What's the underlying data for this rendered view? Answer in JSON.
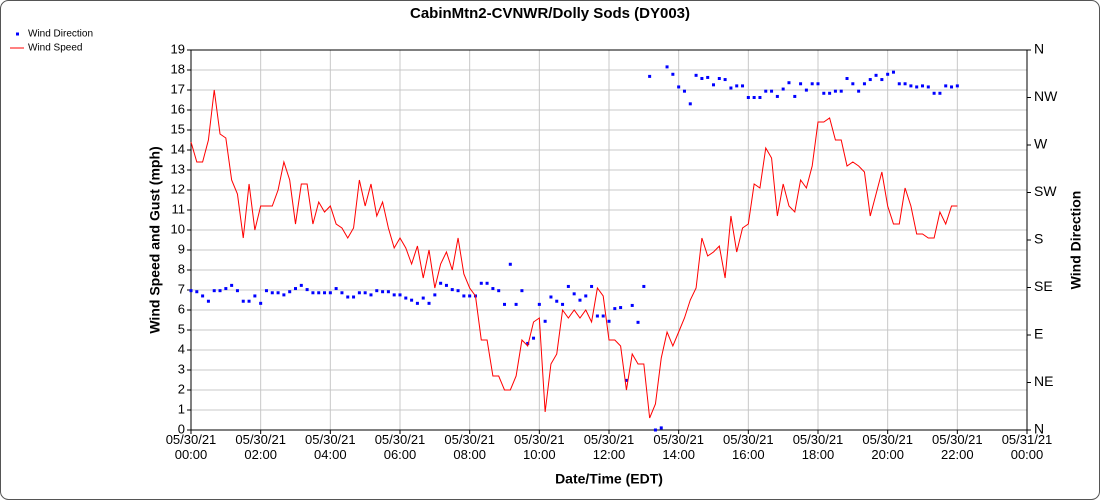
{
  "chart_data": {
    "type": "line",
    "title": "CabinMtn2-CVNWR/Dolly Sods (DY003)",
    "xlabel": "Date/Time (EDT)",
    "ylabel": "Wind Speed and Gust (mph)",
    "y2label": "Wind Direction",
    "legend": "top-left",
    "grid": true,
    "xlim": [
      "05/30/21 00:00",
      "05/31/21 00:00"
    ],
    "xticks": [
      "05/30/21 00:00",
      "05/30/21 02:00",
      "05/30/21 04:00",
      "05/30/21 06:00",
      "05/30/21 08:00",
      "05/30/21 10:00",
      "05/30/21 12:00",
      "05/30/21 14:00",
      "05/30/21 16:00",
      "05/30/21 18:00",
      "05/30/21 20:00",
      "05/30/21 22:00",
      "05/31/21 00:00"
    ],
    "ylim": [
      0,
      19
    ],
    "yticks": [
      0,
      1,
      2,
      3,
      4,
      5,
      6,
      7,
      8,
      9,
      10,
      11,
      12,
      13,
      14,
      15,
      16,
      17,
      18,
      19
    ],
    "y2lim": [
      0,
      360
    ],
    "y2ticks": [
      {
        "value": 0,
        "label": "N"
      },
      {
        "value": 45,
        "label": "NE"
      },
      {
        "value": 90,
        "label": "E"
      },
      {
        "value": 135,
        "label": "SE"
      },
      {
        "value": 180,
        "label": "S"
      },
      {
        "value": 225,
        "label": "SW"
      },
      {
        "value": 270,
        "label": "W"
      },
      {
        "value": 315,
        "label": "NW"
      },
      {
        "value": 360,
        "label": "N"
      }
    ],
    "x": [
      "05/30/21 00:00",
      "05/30/21 00:10",
      "05/30/21 00:20",
      "05/30/21 00:30",
      "05/30/21 00:40",
      "05/30/21 00:50",
      "05/30/21 01:00",
      "05/30/21 01:10",
      "05/30/21 01:20",
      "05/30/21 01:30",
      "05/30/21 01:40",
      "05/30/21 01:50",
      "05/30/21 02:00",
      "05/30/21 02:10",
      "05/30/21 02:20",
      "05/30/21 02:30",
      "05/30/21 02:40",
      "05/30/21 02:50",
      "05/30/21 03:00",
      "05/30/21 03:10",
      "05/30/21 03:20",
      "05/30/21 03:30",
      "05/30/21 03:40",
      "05/30/21 03:50",
      "05/30/21 04:00",
      "05/30/21 04:10",
      "05/30/21 04:20",
      "05/30/21 04:30",
      "05/30/21 04:40",
      "05/30/21 04:50",
      "05/30/21 05:00",
      "05/30/21 05:10",
      "05/30/21 05:20",
      "05/30/21 05:30",
      "05/30/21 05:40",
      "05/30/21 05:50",
      "05/30/21 06:00",
      "05/30/21 06:10",
      "05/30/21 06:20",
      "05/30/21 06:30",
      "05/30/21 06:40",
      "05/30/21 06:50",
      "05/30/21 07:00",
      "05/30/21 07:10",
      "05/30/21 07:20",
      "05/30/21 07:30",
      "05/30/21 07:40",
      "05/30/21 07:50",
      "05/30/21 08:00",
      "05/30/21 08:10",
      "05/30/21 08:20",
      "05/30/21 08:30",
      "05/30/21 08:40",
      "05/30/21 08:50",
      "05/30/21 09:00",
      "05/30/21 09:10",
      "05/30/21 09:20",
      "05/30/21 09:30",
      "05/30/21 09:40",
      "05/30/21 09:50",
      "05/30/21 10:00",
      "05/30/21 10:10",
      "05/30/21 10:20",
      "05/30/21 10:30",
      "05/30/21 10:40",
      "05/30/21 10:50",
      "05/30/21 11:00",
      "05/30/21 11:10",
      "05/30/21 11:20",
      "05/30/21 11:30",
      "05/30/21 11:40",
      "05/30/21 11:50",
      "05/30/21 12:00",
      "05/30/21 12:10",
      "05/30/21 12:20",
      "05/30/21 12:30",
      "05/30/21 12:40",
      "05/30/21 12:50",
      "05/30/21 13:00",
      "05/30/21 13:10",
      "05/30/21 13:20",
      "05/30/21 13:30",
      "05/30/21 13:40",
      "05/30/21 13:50",
      "05/30/21 14:00",
      "05/30/21 14:10",
      "05/30/21 14:20",
      "05/30/21 14:30",
      "05/30/21 14:40",
      "05/30/21 14:50",
      "05/30/21 15:00",
      "05/30/21 15:10",
      "05/30/21 15:20",
      "05/30/21 15:30",
      "05/30/21 15:40",
      "05/30/21 15:50",
      "05/30/21 16:00",
      "05/30/21 16:10",
      "05/30/21 16:20",
      "05/30/21 16:30",
      "05/30/21 16:40",
      "05/30/21 16:50",
      "05/30/21 17:00",
      "05/30/21 17:10",
      "05/30/21 17:20",
      "05/30/21 17:30",
      "05/30/21 17:40",
      "05/30/21 17:50",
      "05/30/21 18:00",
      "05/30/21 18:10",
      "05/30/21 18:20",
      "05/30/21 18:30",
      "05/30/21 18:40",
      "05/30/21 18:50",
      "05/30/21 19:00",
      "05/30/21 19:10",
      "05/30/21 19:20",
      "05/30/21 19:30",
      "05/30/21 19:40",
      "05/30/21 19:50",
      "05/30/21 20:00",
      "05/30/21 20:10",
      "05/30/21 20:20",
      "05/30/21 20:30",
      "05/30/21 20:40",
      "05/30/21 20:50",
      "05/30/21 21:00",
      "05/30/21 21:10",
      "05/30/21 21:20",
      "05/30/21 21:30",
      "05/30/21 21:40",
      "05/30/21 21:50",
      "05/30/21 22:00"
    ],
    "series": [
      {
        "name": "Wind Direction",
        "color": "#0000ff",
        "style": "points",
        "axis": "y2",
        "values": [
          132,
          131,
          127,
          122,
          132,
          132,
          134,
          137,
          132,
          122,
          122,
          127,
          120,
          132,
          130,
          130,
          128,
          131,
          134,
          137,
          133,
          130,
          130,
          130,
          130,
          134,
          130,
          126,
          126,
          130,
          130,
          128,
          132,
          131,
          131,
          128,
          128,
          125,
          123,
          120,
          125,
          120,
          128,
          139,
          137,
          133,
          132,
          127,
          127,
          127,
          139,
          139,
          134,
          132,
          119,
          157,
          119,
          132,
          82,
          87,
          119,
          103,
          126,
          122,
          119,
          136,
          129,
          123,
          127,
          136,
          108,
          108,
          103,
          115,
          116,
          47,
          118,
          102,
          136,
          335,
          0,
          2,
          344,
          337,
          325,
          321,
          309,
          336,
          333,
          334,
          327,
          333,
          332,
          324,
          326,
          326,
          315,
          315,
          315,
          321,
          321,
          316,
          323,
          329,
          316,
          328,
          322,
          328,
          328,
          319,
          319,
          321,
          321,
          333,
          328,
          321,
          328,
          332,
          336,
          332,
          337,
          339,
          328,
          328,
          326,
          325,
          326,
          325,
          319,
          319,
          326,
          325,
          326
        ]
      },
      {
        "name": "Wind Speed",
        "color": "#ff0000",
        "style": "line",
        "values": [
          14.4,
          13.4,
          13.4,
          14.5,
          17.0,
          14.8,
          14.6,
          12.5,
          11.8,
          9.6,
          12.3,
          10.0,
          11.2,
          11.2,
          11.2,
          12.0,
          13.4,
          12.5,
          10.3,
          12.3,
          12.3,
          10.3,
          11.4,
          10.9,
          11.2,
          10.3,
          10.1,
          9.6,
          10.1,
          12.5,
          11.2,
          12.3,
          10.7,
          11.4,
          10.1,
          9.1,
          9.6,
          9.1,
          8.3,
          9.2,
          7.6,
          9.0,
          7.1,
          8.3,
          8.9,
          8.0,
          9.6,
          7.8,
          7.1,
          6.7,
          4.5,
          4.5,
          2.7,
          2.7,
          2.0,
          2.0,
          2.7,
          4.5,
          4.2,
          5.4,
          5.6,
          0.9,
          3.3,
          3.8,
          6.0,
          5.6,
          6.0,
          5.6,
          6.0,
          5.4,
          7.1,
          6.7,
          4.5,
          4.5,
          4.2,
          2.0,
          3.8,
          3.3,
          3.3,
          0.6,
          1.3,
          3.6,
          4.9,
          4.2,
          4.9,
          5.6,
          6.5,
          7.1,
          9.6,
          8.7,
          8.9,
          9.2,
          7.6,
          10.7,
          8.9,
          10.1,
          10.3,
          12.3,
          12.1,
          14.1,
          13.6,
          10.7,
          12.3,
          11.2,
          10.9,
          12.5,
          12.1,
          13.2,
          15.4,
          15.4,
          15.6,
          14.5,
          14.5,
          13.2,
          13.4,
          13.2,
          12.9,
          10.7,
          11.8,
          12.9,
          11.2,
          10.3,
          10.3,
          12.1,
          11.2,
          9.8,
          9.8,
          9.6,
          9.6,
          10.9,
          10.3,
          11.2,
          11.2
        ]
      }
    ]
  }
}
